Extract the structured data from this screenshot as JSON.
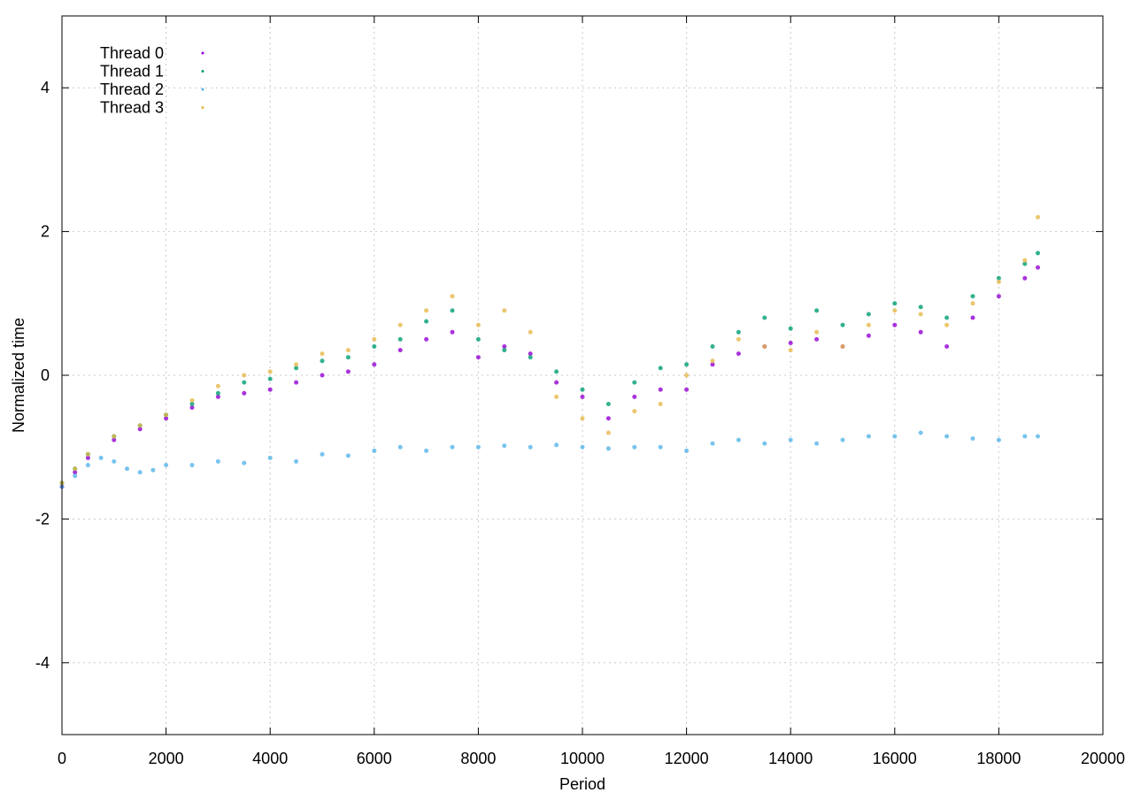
{
  "chart_data": {
    "type": "scatter",
    "title": "",
    "xlabel": "Period",
    "ylabel": "Normalized time",
    "xlim": [
      0,
      20000
    ],
    "ylim": [
      -5,
      5
    ],
    "xticks": [
      0,
      2000,
      4000,
      6000,
      8000,
      10000,
      12000,
      14000,
      16000,
      18000,
      20000
    ],
    "yticks": [
      -4,
      -2,
      0,
      2,
      4
    ],
    "xtick_labels": [
      "0",
      "2000",
      "4000",
      "6000",
      "8000",
      "10000",
      "12000",
      "14000",
      "16000",
      "18000",
      "20000"
    ],
    "ytick_labels": [
      "-4",
      "-2",
      "0",
      "2",
      "4"
    ],
    "grid": true,
    "legend_position": "top-left",
    "series": [
      {
        "name": "Thread 0",
        "color": "#9400d3",
        "x": [
          0,
          250,
          500,
          1000,
          1500,
          2000,
          2500,
          3000,
          3500,
          4000,
          4500,
          5000,
          5500,
          6000,
          6500,
          7000,
          7500,
          8000,
          8500,
          9000,
          9500,
          10000,
          10500,
          11000,
          11500,
          12000,
          12500,
          13000,
          13500,
          14000,
          14500,
          15000,
          15500,
          16000,
          16500,
          17000,
          17500,
          18000,
          18500,
          18750
        ],
        "y": [
          -1.55,
          -1.35,
          -1.15,
          -0.9,
          -0.75,
          -0.6,
          -0.45,
          -0.3,
          -0.25,
          -0.2,
          -0.1,
          0.0,
          0.05,
          0.15,
          0.35,
          0.5,
          0.6,
          0.25,
          0.4,
          0.3,
          -0.1,
          -0.3,
          -0.6,
          -0.3,
          -0.2,
          -0.2,
          0.15,
          0.3,
          0.4,
          0.45,
          0.5,
          0.4,
          0.55,
          0.7,
          0.6,
          0.4,
          0.8,
          1.1,
          1.35,
          1.5
        ]
      },
      {
        "name": "Thread 1",
        "color": "#009e73",
        "x": [
          0,
          250,
          500,
          1000,
          1500,
          2000,
          2500,
          3000,
          3500,
          4000,
          4500,
          5000,
          5500,
          6000,
          6500,
          7000,
          7500,
          8000,
          8500,
          9000,
          9500,
          10000,
          10500,
          11000,
          11500,
          12000,
          12500,
          13000,
          13500,
          14000,
          14500,
          15000,
          15500,
          16000,
          16500,
          17000,
          17500,
          18000,
          18500,
          18750
        ],
        "y": [
          -1.5,
          -1.3,
          -1.1,
          -0.85,
          -0.7,
          -0.55,
          -0.4,
          -0.25,
          -0.1,
          -0.05,
          0.1,
          0.2,
          0.25,
          0.4,
          0.5,
          0.75,
          0.9,
          0.5,
          0.35,
          0.25,
          0.05,
          -0.2,
          -0.4,
          -0.1,
          0.1,
          0.15,
          0.4,
          0.6,
          0.8,
          0.65,
          0.9,
          0.7,
          0.85,
          1.0,
          0.95,
          0.8,
          1.1,
          1.35,
          1.55,
          1.7
        ]
      },
      {
        "name": "Thread 2",
        "color": "#56b4e9",
        "x": [
          0,
          250,
          500,
          750,
          1000,
          1250,
          1500,
          1750,
          2000,
          2500,
          3000,
          3500,
          4000,
          4500,
          5000,
          5500,
          6000,
          6500,
          7000,
          7500,
          8000,
          8500,
          9000,
          9500,
          10000,
          10500,
          11000,
          11500,
          12000,
          12500,
          13000,
          13500,
          14000,
          14500,
          15000,
          15500,
          16000,
          16500,
          17000,
          17500,
          18000,
          18500,
          18750
        ],
        "y": [
          -1.55,
          -1.4,
          -1.25,
          -1.15,
          -1.2,
          -1.3,
          -1.35,
          -1.32,
          -1.25,
          -1.25,
          -1.2,
          -1.22,
          -1.15,
          -1.2,
          -1.1,
          -1.12,
          -1.05,
          -1.0,
          -1.05,
          -1.0,
          -1.0,
          -0.98,
          -1.0,
          -0.97,
          -1.0,
          -1.02,
          -1.0,
          -1.0,
          -1.05,
          -0.95,
          -0.9,
          -0.95,
          -0.9,
          -0.95,
          -0.9,
          -0.85,
          -0.85,
          -0.8,
          -0.85,
          -0.88,
          -0.9,
          -0.85,
          -0.85
        ]
      },
      {
        "name": "Thread 3",
        "color": "#e6b84a",
        "x": [
          0,
          250,
          500,
          1000,
          1500,
          2000,
          2500,
          3000,
          3500,
          4000,
          4500,
          5000,
          5500,
          6000,
          6500,
          7000,
          7500,
          8000,
          8500,
          9000,
          9500,
          10000,
          10500,
          11000,
          11500,
          12000,
          12500,
          13000,
          13500,
          14000,
          14500,
          15000,
          15500,
          16000,
          16500,
          17000,
          17500,
          18000,
          18500,
          18750
        ],
        "y": [
          -1.5,
          -1.3,
          -1.1,
          -0.85,
          -0.7,
          -0.55,
          -0.35,
          -0.15,
          0.0,
          0.05,
          0.15,
          0.3,
          0.35,
          0.5,
          0.7,
          0.9,
          1.1,
          0.7,
          0.9,
          0.6,
          -0.3,
          -0.6,
          -0.8,
          -0.5,
          -0.4,
          0.0,
          0.2,
          0.5,
          0.4,
          0.35,
          0.6,
          0.4,
          0.7,
          0.9,
          0.85,
          0.7,
          1.0,
          1.3,
          1.6,
          2.2
        ]
      }
    ]
  }
}
